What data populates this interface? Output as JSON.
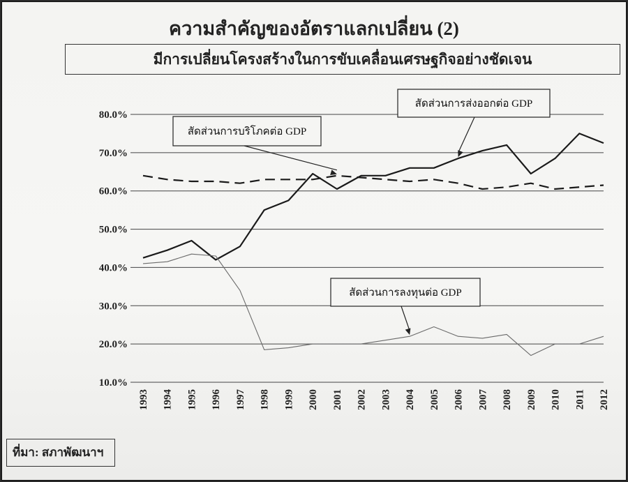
{
  "title": "ความสำคัญของอัตราแลกเปลี่ยน (2)",
  "subtitle": "มีการเปลี่ยนโครงสร้างในการขับเคลื่อนเศรษฐกิจอย่างชัดเจน",
  "source": "ที่มา: สภาพัฒนาฯ",
  "colors": {
    "grid": "#444444",
    "export": "#1a1a1a",
    "consumption": "#1a1a1a",
    "investment": "#6a6a6a"
  },
  "chart_data": {
    "type": "line",
    "x": [
      "1993",
      "1994",
      "1995",
      "1996",
      "1997",
      "1998",
      "1999",
      "2000",
      "2001",
      "2002",
      "2003",
      "2004",
      "2005",
      "2006",
      "2007",
      "2008",
      "2009",
      "2010",
      "2011",
      "2012"
    ],
    "ylim": [
      10,
      80
    ],
    "yticks": [
      "10.0%",
      "20.0%",
      "30.0%",
      "40.0%",
      "50.0%",
      "60.0%",
      "70.0%",
      "80.0%"
    ],
    "grid": "horizontal",
    "series": [
      {
        "name": "สัดส่วนการส่งออกต่อ GDP",
        "style": "solid",
        "values": [
          42.5,
          44.5,
          47,
          42,
          45.5,
          55,
          57.5,
          64.5,
          60.5,
          64,
          64,
          66,
          66,
          68.5,
          70.5,
          72,
          64.5,
          68.5,
          75,
          72.5
        ]
      },
      {
        "name": "สัดส่วนการบริโภคต่อ GDP",
        "style": "dashed",
        "values": [
          64,
          63,
          62.5,
          62.5,
          62,
          63,
          63,
          63,
          64,
          63.5,
          63,
          62.5,
          63,
          62,
          60.5,
          61,
          62,
          60.5,
          61,
          61.5
        ]
      },
      {
        "name": "สัดส่วนการลงทุนต่อ GDP",
        "style": "thin",
        "values": [
          41,
          41.5,
          43.5,
          43,
          34,
          18.5,
          19,
          20,
          20,
          20,
          21,
          22,
          24.5,
          22,
          21.5,
          22.5,
          17,
          20,
          20,
          22
        ]
      }
    ]
  }
}
